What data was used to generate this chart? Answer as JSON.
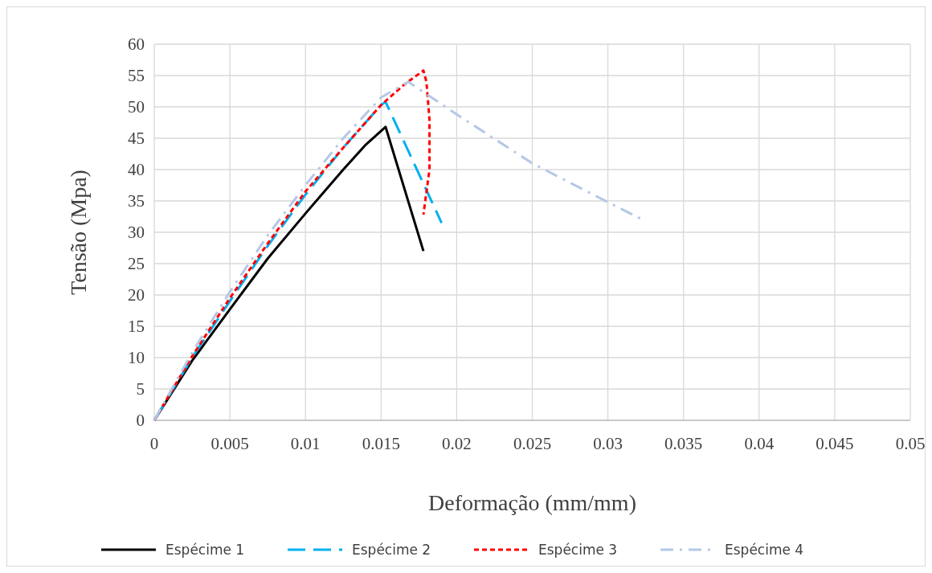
{
  "chart_data": {
    "type": "line",
    "xlabel": "Deformação (mm/mm)",
    "ylabel": "Tensão (Mpa)",
    "xlim": [
      0,
      0.05
    ],
    "ylim": [
      0,
      60
    ],
    "xticks": [
      0,
      0.005,
      0.01,
      0.015,
      0.02,
      0.025,
      0.03,
      0.035,
      0.04,
      0.045,
      0.05
    ],
    "yticks": [
      0,
      5,
      10,
      15,
      20,
      25,
      30,
      35,
      40,
      45,
      50,
      55,
      60
    ],
    "grid": true,
    "legend": "bottom",
    "series": [
      {
        "name": "Espécime 1",
        "color": "#000000",
        "line_style": "solid",
        "x": [
          0,
          0.0025,
          0.005,
          0.0075,
          0.01,
          0.0125,
          0.014,
          0.0153,
          0.0178
        ],
        "values": [
          0,
          9.5,
          17.7,
          25.8,
          33,
          40,
          44,
          46.8,
          27
        ]
      },
      {
        "name": "Espécime 2",
        "color": "#00b0f0",
        "line_style": "dashed",
        "x": [
          0,
          0.0025,
          0.005,
          0.0075,
          0.01,
          0.0125,
          0.015,
          0.0153,
          0.019
        ],
        "values": [
          0,
          10,
          19,
          27.8,
          36,
          43.5,
          50.3,
          50.8,
          31.5
        ]
      },
      {
        "name": "Espécime 3",
        "color": "#ff0000",
        "line_style": "dotted",
        "x": [
          0,
          0.0025,
          0.005,
          0.0075,
          0.01,
          0.0125,
          0.015,
          0.0165,
          0.0178,
          0.018,
          0.0182,
          0.0182,
          0.0178
        ],
        "values": [
          0,
          10.2,
          19.5,
          28.2,
          36.5,
          43.5,
          50.3,
          53.5,
          55.8,
          54,
          48,
          40,
          32.8
        ]
      },
      {
        "name": "Espécime 4",
        "color": "#b4c7e7",
        "line_style": "dashdot",
        "x": [
          0,
          0.0025,
          0.005,
          0.0075,
          0.01,
          0.0125,
          0.015,
          0.0168,
          0.02,
          0.025,
          0.03,
          0.0323
        ],
        "values": [
          0,
          10.8,
          20.5,
          29.5,
          37.5,
          45,
          51.5,
          54,
          48.8,
          41,
          34.8,
          32
        ]
      }
    ]
  }
}
